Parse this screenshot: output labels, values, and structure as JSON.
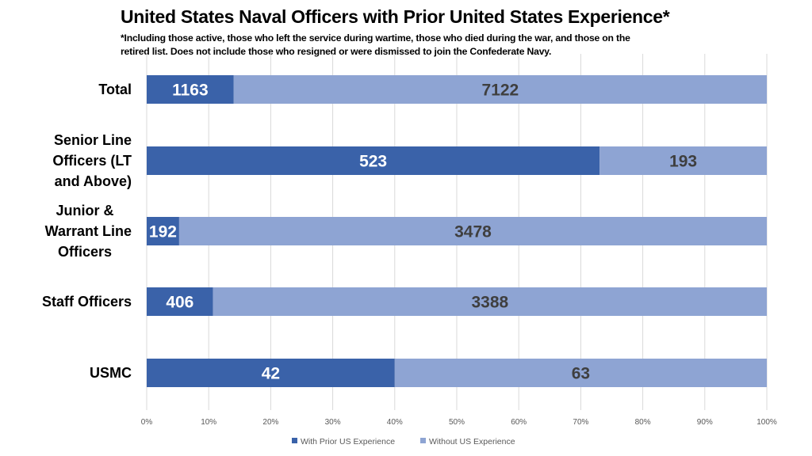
{
  "chart_data": {
    "type": "bar",
    "orientation": "horizontal",
    "stacking": "percent",
    "title": "United States Naval Officers with Prior United States Experience*",
    "subtitle": [
      "*Including those active, those who left the service during wartime, those who died during the war, and  those on the",
      "retired list. Does not include those who resigned or were dismissed to join the Confederate Navy."
    ],
    "categories": [
      [
        "Total"
      ],
      [
        "Senior Line",
        "Officers (LT",
        "and Above)"
      ],
      [
        "Junior &",
        "Warrant Line",
        "Officers"
      ],
      [
        "Staff Officers"
      ],
      [
        "USMC"
      ]
    ],
    "series": [
      {
        "name": "With Prior US Experience",
        "color": "#3A62A9",
        "label_color": "#FFFFFF",
        "values": [
          1163,
          523,
          192,
          406,
          42
        ]
      },
      {
        "name": "Without US Experience",
        "color": "#8EA4D3",
        "label_color": "#3F3F3F",
        "values": [
          7122,
          193,
          3478,
          3388,
          63
        ]
      }
    ],
    "xlim": [
      0,
      100
    ],
    "xticks": [
      "0%",
      "10%",
      "20%",
      "30%",
      "40%",
      "50%",
      "60%",
      "70%",
      "80%",
      "90%",
      "100%"
    ],
    "grid": true,
    "legend": "bottom",
    "xlabel": "",
    "ylabel": ""
  }
}
